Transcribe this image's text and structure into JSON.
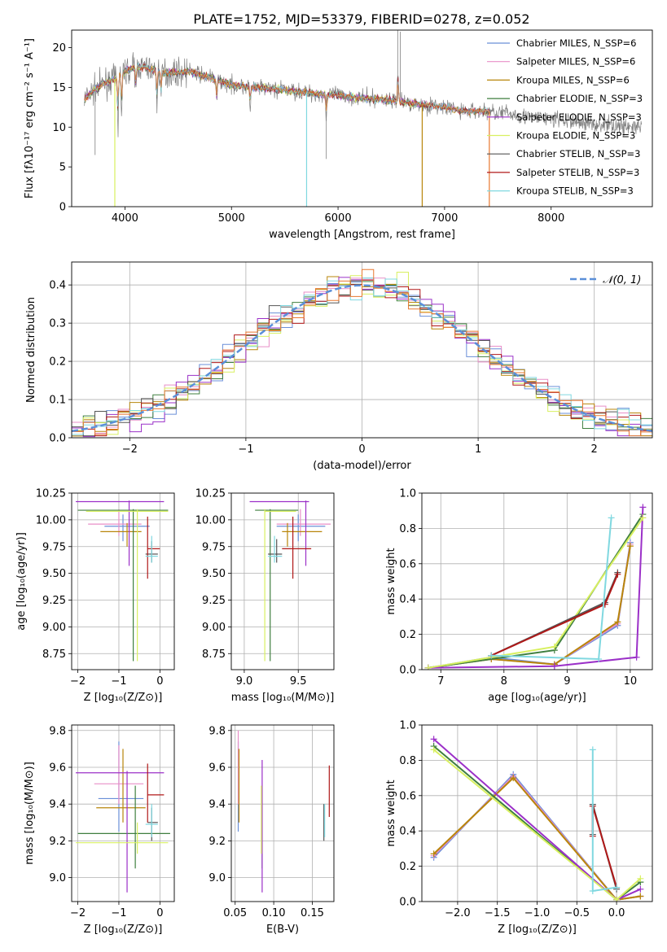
{
  "title": "PLATE=1752, MJD=53379, FIBERID=0278, z=0.052",
  "colors": {
    "chabrier_miles": "#6a8fd8",
    "salpeter_miles": "#e88fc8",
    "kroupa_miles": "#b8860b",
    "chabrier_elodie": "#3f7f3f",
    "salpeter_elodie": "#9b30c8",
    "kroupa_elodie": "#d8f060",
    "chabrier_stelib": "#555555",
    "salpeter_stelib": "#b01818",
    "kroupa_stelib": "#80d8e0",
    "data": "#808080",
    "model_orange": "#e87830"
  },
  "chart_data": [
    {
      "type": "line",
      "id": "spectrum",
      "xlabel": "wavelength [Angstrom, rest frame]",
      "ylabel": "Flux [fλ10⁻¹⁷ erg cm⁻² s⁻¹ A⁻¹]",
      "xlim": [
        3500,
        8950
      ],
      "ylim": [
        0,
        22.2
      ],
      "xticks": [
        "4000",
        "5000",
        "6000",
        "7000",
        "8000"
      ],
      "yticks": [
        "0",
        "5",
        "10",
        "15",
        "20"
      ],
      "legend": [
        "Chabrier MILES, N_SSP=6",
        "Salpeter MILES, N_SSP=6",
        "Kroupa MILES, N_SSP=6",
        "Chabrier ELODIE, N_SSP=3",
        "Salpeter ELODIE, N_SSP=3",
        "Kroupa ELODIE, N_SSP=3",
        "Chabrier STELIB, N_SSP=3",
        "Salpeter STELIB, N_SSP=3",
        "Kroupa STELIB, N_SSP=3"
      ],
      "continuum": [
        [
          3620,
          13.5
        ],
        [
          3700,
          14.5
        ],
        [
          3800,
          15.5
        ],
        [
          3900,
          16
        ],
        [
          4000,
          17
        ],
        [
          4100,
          17.6
        ],
        [
          4200,
          17.5
        ],
        [
          4300,
          17
        ],
        [
          4400,
          16.8
        ],
        [
          4600,
          17
        ],
        [
          4800,
          16.2
        ],
        [
          5000,
          15.3
        ],
        [
          5200,
          15
        ],
        [
          5400,
          14.8
        ],
        [
          5600,
          14.5
        ],
        [
          5800,
          14.2
        ],
        [
          6000,
          14
        ],
        [
          6200,
          13.7
        ],
        [
          6400,
          13.5
        ],
        [
          6600,
          13.2
        ],
        [
          6800,
          12.8
        ],
        [
          7000,
          12.5
        ],
        [
          7200,
          12
        ],
        [
          7400,
          12
        ],
        [
          7600,
          11.7
        ],
        [
          7800,
          11.3
        ],
        [
          8000,
          11
        ],
        [
          8200,
          10.7
        ],
        [
          8400,
          10.4
        ],
        [
          8600,
          10.2
        ],
        [
          8800,
          10
        ]
      ]
    },
    {
      "type": "histogram",
      "id": "residuals",
      "xlabel": "(data-model)/error",
      "ylabel": "Normed distribution",
      "xlim": [
        -2.5,
        2.5
      ],
      "ylim": [
        0,
        0.46
      ],
      "xticks": [
        "−2",
        "−1",
        "0",
        "1",
        "2"
      ],
      "yticks": [
        "0.0",
        "0.1",
        "0.2",
        "0.3",
        "0.4"
      ],
      "legend": [
        "𝒩(0, 1)"
      ]
    },
    {
      "type": "scatter",
      "id": "age_vs_Z",
      "xlabel": "Z [log₁₀(Z/Z⊙)]",
      "ylabel": "age  [log₁₀(age/yr)]",
      "xlim": [
        -2.15,
        0.35
      ],
      "ylim": [
        8.6,
        10.25
      ],
      "xticks": [
        "−2",
        "−1",
        "0"
      ],
      "yticks": [
        "8.75",
        "9.00",
        "9.25",
        "9.50",
        "9.75",
        "10.00",
        "10.25"
      ],
      "points": [
        {
          "c": "chabrier_miles",
          "x": -0.9,
          "xe": [
            -1.35,
            -0.25
          ],
          "y": 9.94,
          "ye": [
            9.8,
            10.05
          ]
        },
        {
          "c": "salpeter_miles",
          "x": -1.0,
          "xe": [
            -1.75,
            -0.45
          ],
          "y": 9.96,
          "ye": [
            9.85,
            10.1
          ]
        },
        {
          "c": "kroupa_miles",
          "x": -0.8,
          "xe": [
            -1.45,
            -0.45
          ],
          "y": 9.89,
          "ye": [
            9.75,
            9.97
          ]
        },
        {
          "c": "chabrier_elodie",
          "x": -0.65,
          "xe": [
            -2.0,
            0.2
          ],
          "y": 10.09,
          "ye": [
            8.68,
            10.1
          ]
        },
        {
          "c": "salpeter_elodie",
          "x": -0.75,
          "xe": [
            -2.05,
            0.1
          ],
          "y": 10.17,
          "ye": [
            9.57,
            10.18
          ]
        },
        {
          "c": "kroupa_elodie",
          "x": -0.55,
          "xe": [
            -1.8,
            0.2
          ],
          "y": 10.08,
          "ye": [
            8.68,
            10.1
          ]
        },
        {
          "c": "chabrier_stelib",
          "x": -0.2,
          "xe": [
            -0.35,
            -0.05
          ],
          "y": 9.68,
          "ye": [
            9.6,
            9.8
          ]
        },
        {
          "c": "salpeter_stelib",
          "x": -0.3,
          "xe": [
            -0.3,
            0.0
          ],
          "y": 9.73,
          "ye": [
            9.45,
            10.03
          ]
        },
        {
          "c": "kroupa_stelib",
          "x": -0.2,
          "xe": [
            -0.35,
            -0.05
          ],
          "y": 9.66,
          "ye": [
            9.6,
            9.85
          ]
        }
      ]
    },
    {
      "type": "scatter",
      "id": "age_vs_mass",
      "xlabel": "mass [log₁₀(M/M⊙)]",
      "ylabel": "",
      "xlim": [
        8.88,
        9.83
      ],
      "ylim": [
        8.6,
        10.25
      ],
      "xticks": [
        "9.0",
        "9.5"
      ],
      "yticks": [
        "8.75",
        "9.00",
        "9.25",
        "9.50",
        "9.75",
        "10.00",
        "10.25"
      ],
      "points": [
        {
          "c": "chabrier_miles",
          "x": 9.5,
          "xe": [
            9.3,
            9.75
          ],
          "y": 9.94,
          "ye": [
            9.8,
            10.05
          ]
        },
        {
          "c": "salpeter_miles",
          "x": 9.52,
          "xe": [
            9.3,
            9.8
          ],
          "y": 9.96,
          "ye": [
            9.85,
            10.1
          ]
        },
        {
          "c": "kroupa_miles",
          "x": 9.4,
          "xe": [
            9.35,
            9.72
          ],
          "y": 9.89,
          "ye": [
            9.75,
            9.97
          ]
        },
        {
          "c": "chabrier_elodie",
          "x": 9.24,
          "xe": [
            9.1,
            9.5
          ],
          "y": 10.09,
          "ye": [
            8.68,
            10.1
          ]
        },
        {
          "c": "salpeter_elodie",
          "x": 9.57,
          "xe": [
            9.05,
            9.6
          ],
          "y": 10.17,
          "ye": [
            9.57,
            10.18
          ]
        },
        {
          "c": "kroupa_elodie",
          "x": 9.19,
          "xe": [
            9.19,
            9.48
          ],
          "y": 10.08,
          "ye": [
            8.68,
            10.1
          ]
        },
        {
          "c": "chabrier_stelib",
          "x": 9.3,
          "xe": [
            9.22,
            9.35
          ],
          "y": 9.68,
          "ye": [
            9.6,
            9.82
          ]
        },
        {
          "c": "salpeter_stelib",
          "x": 9.45,
          "xe": [
            9.35,
            9.62
          ],
          "y": 9.73,
          "ye": [
            9.45,
            10.03
          ]
        },
        {
          "c": "kroupa_stelib",
          "x": 9.28,
          "xe": [
            9.22,
            9.35
          ],
          "y": 9.66,
          "ye": [
            9.6,
            9.85
          ]
        }
      ]
    },
    {
      "type": "line",
      "id": "massweight_vs_age",
      "xlabel": "age  [log₁₀(age/yr)]",
      "ylabel": "mass weight",
      "xlim": [
        6.7,
        10.35
      ],
      "ylim": [
        0,
        1.0
      ],
      "xticks": [
        "7",
        "8",
        "9",
        "10"
      ],
      "yticks": [
        "0.0",
        "0.2",
        "0.4",
        "0.6",
        "0.8",
        "1.0"
      ],
      "series": [
        {
          "c": "chabrier_miles",
          "x": [
            6.8,
            7.8,
            8.8,
            9.8,
            10.0
          ],
          "y": [
            0.01,
            0.07,
            0.03,
            0.25,
            0.72
          ]
        },
        {
          "c": "salpeter_miles",
          "x": [
            6.8,
            7.8,
            8.8,
            9.8,
            10.0
          ],
          "y": [
            0.01,
            0.06,
            0.03,
            0.26,
            0.71
          ]
        },
        {
          "c": "kroupa_miles",
          "x": [
            6.8,
            7.8,
            8.8,
            9.8,
            10.0
          ],
          "y": [
            0.01,
            0.06,
            0.03,
            0.27,
            0.7
          ]
        },
        {
          "c": "chabrier_elodie",
          "x": [
            6.8,
            8.8,
            10.2
          ],
          "y": [
            0.01,
            0.11,
            0.88
          ]
        },
        {
          "c": "salpeter_elodie",
          "x": [
            6.8,
            8.8,
            10.1,
            10.2
          ],
          "y": [
            0.01,
            0.02,
            0.07,
            0.92
          ]
        },
        {
          "c": "kroupa_elodie",
          "x": [
            6.8,
            8.8,
            10.2
          ],
          "y": [
            0.01,
            0.13,
            0.86
          ]
        },
        {
          "c": "chabrier_stelib",
          "x": [
            7.8,
            9.6,
            9.8
          ],
          "y": [
            0.08,
            0.38,
            0.55
          ]
        },
        {
          "c": "salpeter_stelib",
          "x": [
            7.8,
            9.6,
            9.8
          ],
          "y": [
            0.08,
            0.37,
            0.54
          ]
        },
        {
          "c": "kroupa_stelib",
          "x": [
            7.8,
            9.5,
            9.7
          ],
          "y": [
            0.08,
            0.06,
            0.86
          ]
        }
      ]
    },
    {
      "type": "scatter",
      "id": "mass_vs_Z",
      "xlabel": "Z [log₁₀(Z/Z⊙)]",
      "ylabel": "mass [log₁₀(M/M⊙)]",
      "xlim": [
        -2.15,
        0.35
      ],
      "ylim": [
        8.87,
        9.83
      ],
      "xticks": [
        "−2",
        "−1",
        "0"
      ],
      "yticks": [
        "9.0",
        "9.2",
        "9.4",
        "9.6",
        "9.8"
      ],
      "points": [
        {
          "c": "chabrier_miles",
          "x": -1.0,
          "xe": [
            -1.5,
            -0.4
          ],
          "y": 9.43,
          "ye": [
            9.25,
            9.74
          ]
        },
        {
          "c": "salpeter_miles",
          "x": -1.0,
          "xe": [
            -1.6,
            -0.4
          ],
          "y": 9.51,
          "ye": [
            9.4,
            9.72
          ]
        },
        {
          "c": "kroupa_miles",
          "x": -0.9,
          "xe": [
            -1.55,
            -0.35
          ],
          "y": 9.38,
          "ye": [
            9.3,
            9.7
          ]
        },
        {
          "c": "chabrier_elodie",
          "x": -0.6,
          "xe": [
            -2.0,
            0.25
          ],
          "y": 9.24,
          "ye": [
            9.05,
            9.5
          ]
        },
        {
          "c": "salpeter_elodie",
          "x": -0.8,
          "xe": [
            -2.05,
            0.1
          ],
          "y": 9.57,
          "ye": [
            8.92,
            9.58
          ]
        },
        {
          "c": "kroupa_elodie",
          "x": -0.55,
          "xe": [
            -2.05,
            0.2
          ],
          "y": 9.19,
          "ye": [
            9.13,
            9.3
          ]
        },
        {
          "c": "chabrier_stelib",
          "x": -0.2,
          "xe": [
            -0.3,
            -0.05
          ],
          "y": 9.3,
          "ye": [
            9.2,
            9.38
          ]
        },
        {
          "c": "salpeter_stelib",
          "x": -0.3,
          "xe": [
            -0.3,
            0.1
          ],
          "y": 9.45,
          "ye": [
            9.3,
            9.62
          ]
        },
        {
          "c": "kroupa_stelib",
          "x": -0.2,
          "xe": [
            -0.35,
            -0.05
          ],
          "y": 9.29,
          "ye": [
            9.22,
            9.4
          ]
        }
      ]
    },
    {
      "type": "scatter",
      "id": "mass_vs_EBV",
      "xlabel": "E(B-V)",
      "ylabel": "",
      "xlim": [
        0.045,
        0.178
      ],
      "ylim": [
        8.87,
        9.83
      ],
      "xticks": [
        "0.05",
        "0.10",
        "0.15"
      ],
      "yticks": [
        "9.0",
        "9.2",
        "9.4",
        "9.6",
        "9.8"
      ],
      "points": [
        {
          "c": "chabrier_miles",
          "x": 0.054,
          "y": 9.43,
          "ye": [
            9.25,
            9.74
          ]
        },
        {
          "c": "salpeter_miles",
          "x": 0.054,
          "y": 9.51,
          "ye": [
            9.4,
            9.8
          ]
        },
        {
          "c": "kroupa_miles",
          "x": 0.055,
          "y": 9.38,
          "ye": [
            9.3,
            9.7
          ]
        },
        {
          "c": "chabrier_elodie",
          "x": 0.085,
          "y": 9.24,
          "ye": [
            9.05,
            9.5
          ]
        },
        {
          "c": "salpeter_elodie",
          "x": 0.085,
          "y": 9.57,
          "ye": [
            8.92,
            9.64
          ]
        },
        {
          "c": "kroupa_elodie",
          "x": 0.084,
          "y": 9.19,
          "ye": [
            9.13,
            9.5
          ]
        },
        {
          "c": "chabrier_stelib",
          "x": 0.165,
          "y": 9.3,
          "ye": [
            9.2,
            9.4
          ]
        },
        {
          "c": "salpeter_stelib",
          "x": 0.172,
          "y": 9.45,
          "ye": [
            9.33,
            9.61
          ]
        },
        {
          "c": "kroupa_stelib",
          "x": 0.166,
          "y": 9.29,
          "ye": [
            9.22,
            9.4
          ]
        }
      ]
    },
    {
      "type": "line",
      "id": "massweight_vs_Z",
      "xlabel": "Z [log₁₀(Z/Z⊙)]",
      "ylabel": "mass weight",
      "xlim": [
        -2.45,
        0.45
      ],
      "ylim": [
        0,
        1.0
      ],
      "xticks": [
        "−2.0",
        "−1.5",
        "−1.0",
        "−0.5",
        "0.0"
      ],
      "yticks": [
        "0.0",
        "0.2",
        "0.4",
        "0.6",
        "0.8",
        "1.0"
      ],
      "series": [
        {
          "c": "chabrier_miles",
          "x": [
            -2.3,
            -1.3,
            0.0,
            0.3
          ],
          "y": [
            0.25,
            0.72,
            0.01,
            0.03
          ]
        },
        {
          "c": "salpeter_miles",
          "x": [
            -2.3,
            -1.3,
            0.0,
            0.3
          ],
          "y": [
            0.26,
            0.71,
            0.01,
            0.03
          ]
        },
        {
          "c": "kroupa_miles",
          "x": [
            -2.3,
            -1.3,
            0.0,
            0.3
          ],
          "y": [
            0.27,
            0.7,
            0.01,
            0.03
          ]
        },
        {
          "c": "chabrier_elodie",
          "x": [
            -2.3,
            0.0,
            0.3
          ],
          "y": [
            0.88,
            0.01,
            0.11
          ]
        },
        {
          "c": "salpeter_elodie",
          "x": [
            -2.3,
            0.0,
            0.3
          ],
          "y": [
            0.92,
            0.01,
            0.07
          ]
        },
        {
          "c": "kroupa_elodie",
          "x": [
            -2.3,
            0.0,
            0.3
          ],
          "y": [
            0.86,
            0.01,
            0.13
          ]
        },
        {
          "c": "chabrier_stelib",
          "x": [
            -0.3,
            -0.3,
            0.0
          ],
          "y": [
            0.38,
            0.55,
            0.07
          ]
        },
        {
          "c": "salpeter_stelib",
          "x": [
            -0.3,
            -0.3,
            0.0
          ],
          "y": [
            0.37,
            0.54,
            0.08
          ]
        },
        {
          "c": "kroupa_stelib",
          "x": [
            -0.3,
            -0.3,
            0.0
          ],
          "y": [
            0.86,
            0.06,
            0.08
          ]
        }
      ]
    }
  ]
}
